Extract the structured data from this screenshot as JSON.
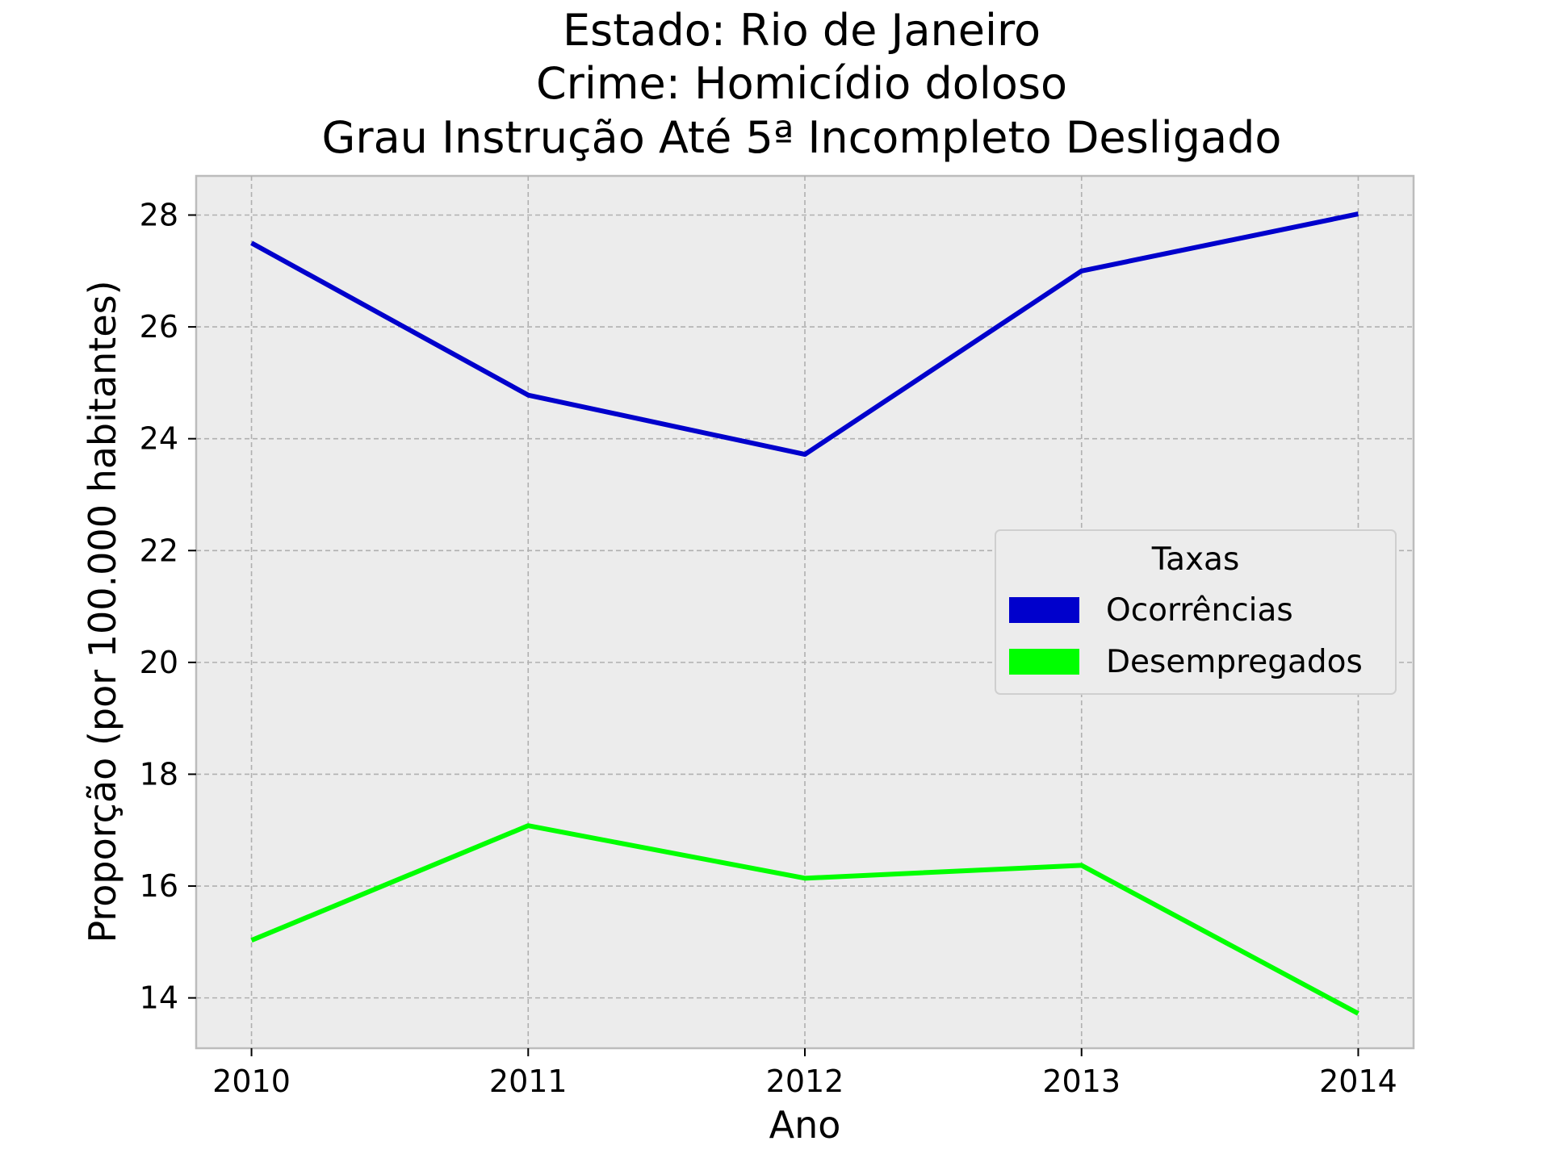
{
  "chart_data": {
    "type": "line",
    "title": [
      "Estado: Rio de Janeiro",
      "Crime: Homicídio doloso",
      "Grau Instrução  Até 5ª Incompleto   Desligado"
    ],
    "xlabel": "Ano",
    "ylabel": "Proporção (por 100.000 habitantes)",
    "x": [
      2010,
      2011,
      2012,
      2013,
      2014
    ],
    "x_tick_labels": [
      "2010",
      "2011",
      "2012",
      "2013",
      "2014"
    ],
    "xlim": [
      2009.8,
      2014.2
    ],
    "ylim": [
      13.1,
      28.7
    ],
    "y_ticks": [
      14,
      16,
      18,
      20,
      22,
      24,
      26,
      28
    ],
    "y_tick_labels": [
      "14",
      "16",
      "18",
      "20",
      "22",
      "24",
      "26",
      "28"
    ],
    "grid": true,
    "legend": {
      "title": "Taxas",
      "placement": "center-right"
    },
    "series": [
      {
        "name": "Ocorrências",
        "color": "#0000cc",
        "values": [
          27.5,
          24.78,
          23.72,
          27.0,
          28.02
        ]
      },
      {
        "name": "Desempregados",
        "color": "#00ff00",
        "values": [
          15.03,
          17.08,
          16.14,
          16.37,
          13.72
        ]
      }
    ]
  }
}
